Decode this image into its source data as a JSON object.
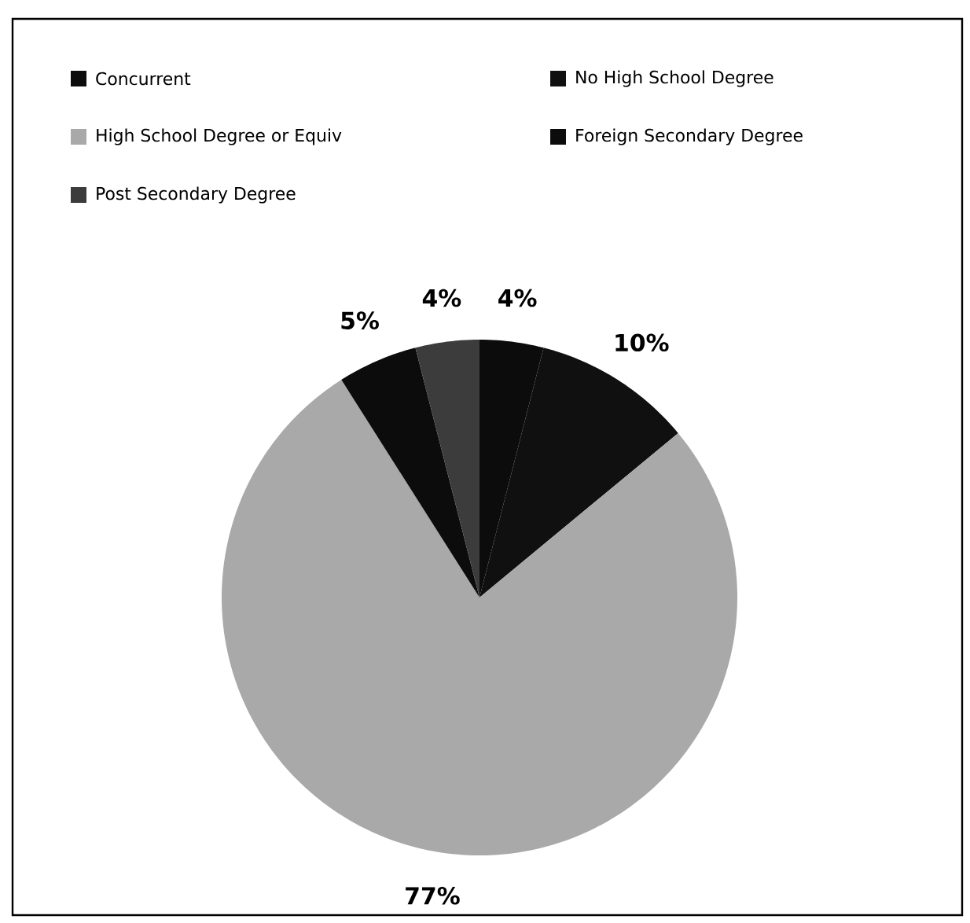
{
  "chart_data": {
    "type": "pie",
    "categories": [
      "Concurrent",
      "No High School Degree",
      "High School Degree or Equiv",
      "Foreign Secondary Degree",
      "Post Secondary Degree"
    ],
    "values": [
      4,
      10,
      77,
      5,
      4
    ],
    "value_labels": [
      "4%",
      "10%",
      "77%",
      "5%",
      "4%"
    ],
    "colors": [
      "#0c0c0c",
      "#101010",
      "#a9a9a9",
      "#0c0c0c",
      "#3c3c3c"
    ],
    "legend": "top"
  }
}
